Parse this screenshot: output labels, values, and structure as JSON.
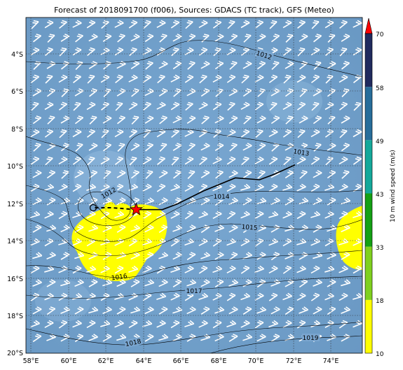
{
  "title": "Forecast of 2018091700 (f006), Sources: GDACS (TC track), GFS (Meteo)",
  "map": {
    "x_ticks": [
      "58°E",
      "60°E",
      "62°E",
      "64°E",
      "66°E",
      "68°E",
      "70°E",
      "72°E",
      "74°E"
    ],
    "y_ticks": [
      "4°S",
      "6°S",
      "8°S",
      "10°S",
      "12°S",
      "14°S",
      "16°S",
      "18°S",
      "20°S"
    ],
    "extent": {
      "lon_min": 57.7,
      "lon_max": 75.7,
      "lat_min": -20.0,
      "lat_max": -2.0
    },
    "background_color": "#6f9fc9",
    "wind_barb_color": "#ffffff",
    "contour_labels": [
      "1012",
      "1013",
      "1014",
      "1015",
      "1016",
      "1017",
      "1018",
      "1019",
      "1012"
    ]
  },
  "track": {
    "observed": [
      [
        72.1,
        -9.9
      ],
      [
        71.0,
        -10.4
      ],
      [
        70.2,
        -10.7
      ],
      [
        68.9,
        -10.6
      ],
      [
        67.2,
        -11.3
      ],
      [
        65.8,
        -12.0
      ],
      [
        65.0,
        -12.3
      ],
      [
        63.7,
        -12.3
      ]
    ],
    "current": [
      63.6,
      -12.3
    ],
    "forecast": [
      [
        63.6,
        -12.3
      ],
      [
        62.3,
        -12.2
      ],
      [
        61.3,
        -12.2
      ]
    ],
    "current_marker_color": "#ff0000",
    "track_color": "#000000"
  },
  "colorbar": {
    "label": "10 m wind speed (m/s)",
    "ticks": [
      "10",
      "18",
      "33",
      "43",
      "49",
      "58",
      "70"
    ],
    "bands": [
      {
        "from": "10",
        "to": "18",
        "color": "#ffff00"
      },
      {
        "from": "18",
        "to": "33",
        "color": "#7fd01e"
      },
      {
        "from": "33",
        "to": "43",
        "color": "#14a014"
      },
      {
        "from": "43",
        "to": "49",
        "color": "#14a89a"
      },
      {
        "from": "49",
        "to": "58",
        "color": "#276d9a"
      },
      {
        "from": "58",
        "to": "70",
        "color": "#202a5e"
      }
    ],
    "extend_color": "#ff0000"
  }
}
